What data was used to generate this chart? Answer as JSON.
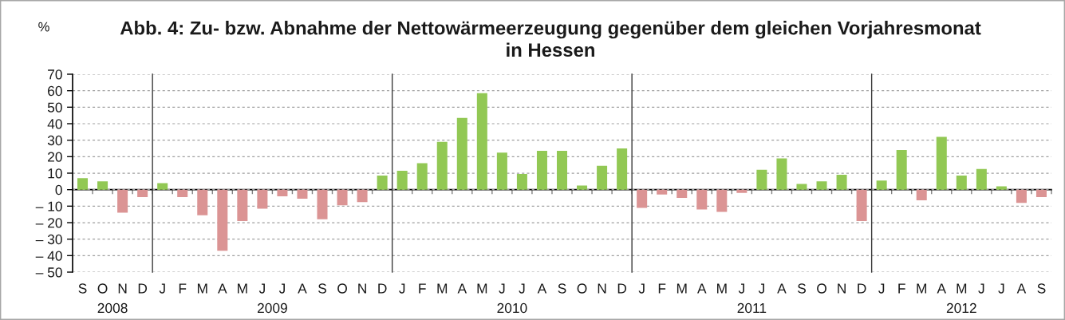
{
  "chart_data": [
    {
      "type": "bar",
      "title": "Abb. 4: Zu- bzw. Abnahme der Nettowärmeerzeugung gegenüber dem gleichen Vorjahresmonat\nin Hessen",
      "ylabel": "%",
      "xlabel": "2008",
      "categories": [
        "S",
        "O",
        "N",
        "D"
      ],
      "values": [
        7,
        5,
        -14,
        -4.5
      ],
      "colors": [
        "#92c854",
        "#92c854",
        "#db9494",
        "#db9494"
      ],
      "ylim": [
        -50,
        70
      ],
      "yticks": [
        {
          "value": -50,
          "label": "– 50"
        },
        {
          "value": -40,
          "label": "– 40"
        },
        {
          "value": -30,
          "label": "– 30"
        },
        {
          "value": -20,
          "label": "– 20"
        },
        {
          "value": -10,
          "label": "– 10"
        },
        0,
        10,
        20,
        30,
        40,
        50,
        60,
        70
      ],
      "grid": "y"
    },
    {
      "type": "bar",
      "xlabel": "2009",
      "categories": [
        "J",
        "F",
        "M",
        "A",
        "M",
        "J",
        "J",
        "A",
        "S",
        "O",
        "N",
        "D"
      ],
      "values": [
        4,
        -4.5,
        -15.5,
        -37,
        -19,
        -11.5,
        -4,
        -5.5,
        -18,
        -9.5,
        -7.5,
        8.5
      ],
      "colors": [
        "#92c854",
        "#db9494",
        "#db9494",
        "#db9494",
        "#db9494",
        "#db9494",
        "#db9494",
        "#db9494",
        "#db9494",
        "#db9494",
        "#db9494",
        "#92c854"
      ],
      "ylim": [
        -50,
        70
      ],
      "yticks": [
        -50,
        -40,
        -30,
        -20,
        -10,
        0,
        10,
        20,
        30,
        40,
        50,
        60,
        70
      ],
      "grid": "y",
      "tick_labels": "x"
    },
    {
      "type": "bar",
      "xlabel": "2010",
      "categories": [
        "J",
        "F",
        "M",
        "A",
        "M",
        "J",
        "J",
        "A",
        "S",
        "O",
        "N",
        "D"
      ],
      "values": [
        11.5,
        16,
        29,
        43.5,
        58.5,
        22.5,
        9.5,
        23.5,
        23.5,
        2.5,
        14.5,
        25
      ],
      "colors": [
        "#92c854",
        "#92c854",
        "#92c854",
        "#92c854",
        "#92c854",
        "#92c854",
        "#92c854",
        "#92c854",
        "#92c854",
        "#92c854",
        "#92c854",
        "#92c854"
      ],
      "ylim": [
        -50,
        70
      ],
      "yticks": [
        -50,
        -40,
        -30,
        -20,
        -10,
        0,
        10,
        20,
        30,
        40,
        50,
        60,
        70
      ],
      "grid": "y",
      "tick_labels": "x"
    },
    {
      "type": "bar",
      "xlabel": "2011",
      "categories": [
        "J",
        "F",
        "M",
        "A",
        "M",
        "J",
        "J",
        "A",
        "S",
        "O",
        "N",
        "D"
      ],
      "values": [
        -11,
        -3,
        -5,
        -12,
        -13.5,
        -2,
        12,
        19,
        3.5,
        5,
        9,
        -19
      ],
      "colors": [
        "#db9494",
        "#db9494",
        "#db9494",
        "#db9494",
        "#db9494",
        "#db9494",
        "#92c854",
        "#92c854",
        "#92c854",
        "#92c854",
        "#92c854",
        "#db9494"
      ],
      "ylim": [
        -50,
        70
      ],
      "yticks": [
        -50,
        -40,
        -30,
        -20,
        -10,
        0,
        10,
        20,
        30,
        40,
        50,
        60,
        70
      ],
      "grid": "y",
      "tick_labels": "x"
    },
    {
      "type": "bar",
      "xlabel": "2012",
      "categories": [
        "J",
        "F",
        "M",
        "A",
        "M",
        "J",
        "J",
        "A",
        "S"
      ],
      "values": [
        5.5,
        24,
        -6.5,
        32,
        8.5,
        12.5,
        2,
        -8,
        -4.5
      ],
      "colors": [
        "#92c854",
        "#92c854",
        "#db9494",
        "#92c854",
        "#92c854",
        "#92c854",
        "#92c854",
        "#db9494",
        "#db9494"
      ],
      "ylim": [
        -50,
        70
      ],
      "yticks": [
        -50,
        -40,
        -30,
        -20,
        -10,
        0,
        10,
        20,
        30,
        40,
        50,
        60,
        70
      ],
      "grid": "y",
      "tick_labels": "x"
    }
  ]
}
